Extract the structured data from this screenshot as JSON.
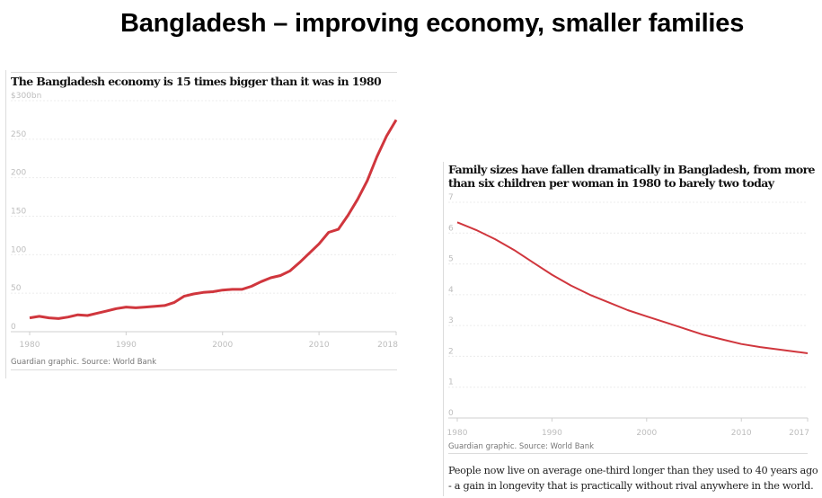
{
  "title": "Bangladesh – improving economy, smaller families",
  "note": "People now live on average one-third longer than they used to 40 years ago - a gain in longevity that is practically without rival anywhere in the world.",
  "chart_data": [
    {
      "type": "line",
      "title": "The Bangladesh economy is 15 times bigger than it was in 1980",
      "source": "Guardian graphic. Source: World Bank",
      "color": "#d0363d",
      "ylim": [
        0,
        300
      ],
      "yticks": [
        "0",
        "50",
        "100",
        "150",
        "200",
        "250",
        "$300bn"
      ],
      "ytick_values": [
        0,
        50,
        100,
        150,
        200,
        250,
        300
      ],
      "xlim": [
        1980,
        2018
      ],
      "xticks": [
        "1980",
        "1990",
        "2000",
        "2010",
        "2018"
      ],
      "xtick_values": [
        1980,
        1990,
        2000,
        2010,
        2018
      ],
      "grid": true,
      "x": [
        1980,
        1981,
        1982,
        1983,
        1984,
        1985,
        1986,
        1987,
        1988,
        1989,
        1990,
        1991,
        1992,
        1993,
        1994,
        1995,
        1996,
        1997,
        1998,
        1999,
        2000,
        2001,
        2002,
        2003,
        2004,
        2005,
        2006,
        2007,
        2008,
        2009,
        2010,
        2011,
        2012,
        2013,
        2014,
        2015,
        2016,
        2017,
        2018
      ],
      "y": [
        18,
        20,
        18,
        17,
        19,
        22,
        21,
        24,
        27,
        30,
        32,
        31,
        32,
        33,
        34,
        38,
        46,
        49,
        51,
        52,
        54,
        55,
        55,
        59,
        65,
        70,
        73,
        79,
        90,
        102,
        114,
        129,
        133,
        151,
        172,
        196,
        227,
        254,
        275
      ]
    },
    {
      "type": "line",
      "title": "Family sizes have fallen dramatically in Bangladesh, from more than six children per woman in 1980 to barely two today",
      "source": "Guardian graphic. Source: World Bank",
      "color": "#d0363d",
      "ylim": [
        0,
        7
      ],
      "yticks": [
        "0",
        "1",
        "2",
        "3",
        "4",
        "5",
        "6",
        "7"
      ],
      "ytick_values": [
        0,
        1,
        2,
        3,
        4,
        5,
        6,
        7
      ],
      "xlim": [
        1980,
        2017
      ],
      "xticks": [
        "1980",
        "1990",
        "2000",
        "2010",
        "2017"
      ],
      "xtick_values": [
        1980,
        1990,
        2000,
        2010,
        2017
      ],
      "grid": true,
      "x": [
        1980,
        1982,
        1984,
        1986,
        1988,
        1990,
        1992,
        1994,
        1996,
        1998,
        2000,
        2002,
        2004,
        2006,
        2008,
        2010,
        2012,
        2014,
        2016,
        2017
      ],
      "y": [
        6.35,
        6.1,
        5.8,
        5.45,
        5.05,
        4.65,
        4.3,
        4.0,
        3.75,
        3.5,
        3.3,
        3.1,
        2.9,
        2.7,
        2.55,
        2.4,
        2.3,
        2.22,
        2.14,
        2.1
      ]
    }
  ]
}
